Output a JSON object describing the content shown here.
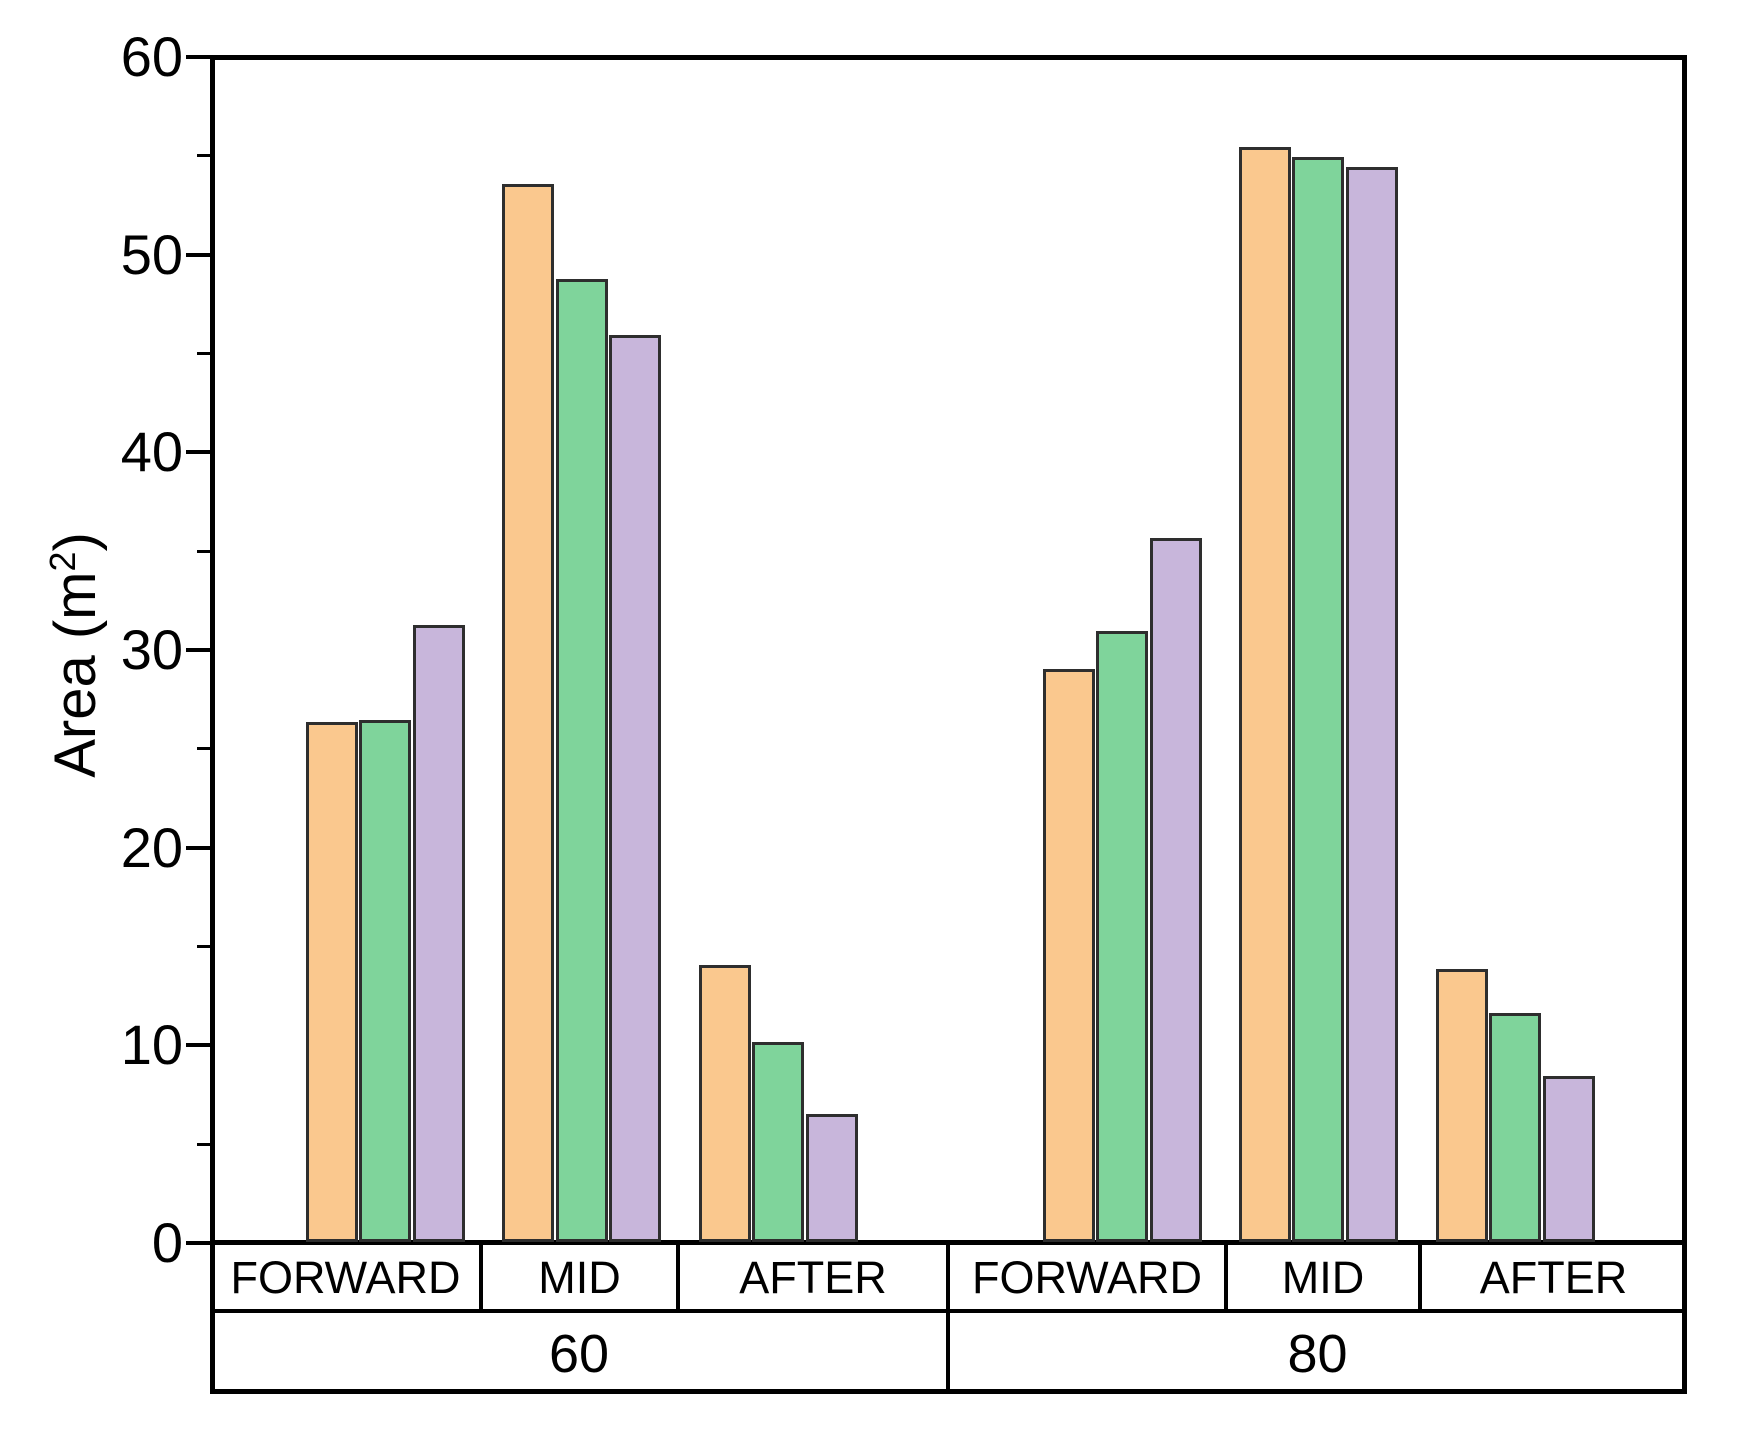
{
  "chart_data": {
    "type": "bar",
    "title": "",
    "ylabel": {
      "prefix": "Area (m",
      "sup": "2",
      "suffix": ")"
    },
    "y_axis": {
      "min": 0,
      "max": 60,
      "major_ticks": [
        {
          "label": "60",
          "value": 60
        },
        {
          "label": "50",
          "value": 50
        },
        {
          "label": "40",
          "value": 40
        },
        {
          "label": "30",
          "value": 30
        },
        {
          "label": "20",
          "value": 20
        },
        {
          "label": "10",
          "value": 10
        },
        {
          "label": "0",
          "value": 0
        }
      ],
      "minor_tick_values": [
        55,
        45,
        35,
        25,
        15,
        5
      ]
    },
    "groups": [
      {
        "label": "60",
        "categories": [
          "FORWARD",
          "MID",
          "AFTER"
        ]
      },
      {
        "label": "80",
        "categories": [
          "FORWARD",
          "MID",
          "AFTER"
        ]
      }
    ],
    "slots": [
      "60-FORWARD",
      "60-MID",
      "60-AFTER",
      "80-FORWARD",
      "80-MID",
      "80-AFTER"
    ],
    "series": [
      {
        "name": "orange",
        "color": "#FAC88E",
        "border_color": "#2e2e2e",
        "values": [
          26.3,
          53.5,
          14.0,
          29.0,
          55.4,
          13.8
        ]
      },
      {
        "name": "green",
        "color": "#7FD49B",
        "border_color": "#2e2e2e",
        "values": [
          26.4,
          48.7,
          10.1,
          30.9,
          54.9,
          11.6
        ]
      },
      {
        "name": "purple",
        "color": "#C8B6DB",
        "border_color": "#2e2e2e",
        "values": [
          31.2,
          45.9,
          6.5,
          35.6,
          54.4,
          8.4
        ]
      }
    ],
    "legend": "none",
    "grid": false,
    "frame_color": "#000000",
    "background": "#ffffff"
  }
}
